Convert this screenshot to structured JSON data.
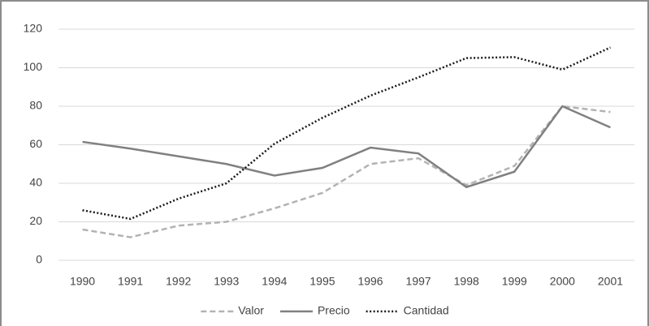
{
  "chart_data": {
    "type": "line",
    "categories": [
      "1990",
      "1991",
      "1992",
      "1993",
      "1994",
      "1995",
      "1996",
      "1997",
      "1998",
      "1999",
      "2000",
      "2001"
    ],
    "series": [
      {
        "name": "Valor",
        "color": "#b3b3b3",
        "style": "dashed",
        "values": [
          16,
          12,
          18,
          20,
          27,
          35,
          50,
          53,
          39,
          49,
          80,
          77
        ]
      },
      {
        "name": "Precio",
        "color": "#808080",
        "style": "solid",
        "values": [
          61.5,
          58,
          54,
          50,
          44,
          48,
          58.5,
          55.5,
          38,
          46,
          80,
          69
        ]
      },
      {
        "name": "Cantidad",
        "color": "#1a1a1a",
        "style": "dotted",
        "values": [
          26,
          21.5,
          32,
          40,
          60.5,
          74,
          85.5,
          95,
          105,
          105.5,
          99,
          110.5
        ]
      }
    ],
    "ylim": [
      0,
      120
    ],
    "yticks": [
      0,
      20,
      40,
      60,
      80,
      100,
      120
    ],
    "grid": true,
    "legend": "bottom"
  }
}
